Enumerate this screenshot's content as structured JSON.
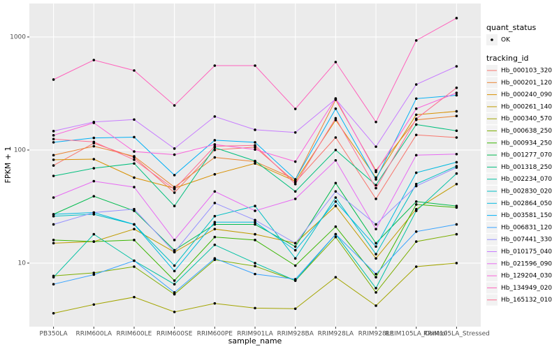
{
  "chart_data": {
    "type": "line",
    "xlabel": "sample_name",
    "ylabel": "FPKM + 1",
    "log_y": true,
    "grid": true,
    "point_color": "#000000",
    "categories": [
      "PB350LA",
      "RRIM600LA",
      "RRIM600LE",
      "RRIM600SE",
      "RRIM600PE",
      "RRIM901LA",
      "RRIM928BA",
      "RRIM928LA",
      "RRIM928LE",
      "RRIM105LA_Control",
      "RRIM105LA_Stressed"
    ],
    "ylim": [
      2.74,
      1977
    ],
    "yticks": [
      10,
      100,
      1000
    ],
    "shape_legend": {
      "title": "quant_status",
      "labels": [
        "OK"
      ]
    },
    "legend": {
      "title": "tracking_id",
      "position": "right"
    },
    "series": [
      {
        "name": "Hb_000103_320",
        "color": "#F8766D",
        "values": [
          73,
          115,
          86,
          42,
          100,
          106,
          52,
          129,
          37,
          136,
          129
        ]
      },
      {
        "name": "Hb_000201_120",
        "color": "#EA8331",
        "values": [
          90,
          108,
          88,
          47,
          86,
          79,
          55,
          278,
          66,
          185,
          200
        ]
      },
      {
        "name": "Hb_000240_090",
        "color": "#D89000",
        "values": [
          82,
          83,
          57,
          46,
          61,
          76,
          53,
          184,
          57,
          205,
          220
        ]
      },
      {
        "name": "Hb_000261_140",
        "color": "#C09B00",
        "values": [
          15,
          15.5,
          20,
          12.5,
          20,
          18,
          15,
          32,
          11,
          30,
          50
        ]
      },
      {
        "name": "Hb_000340_570",
        "color": "#A3A500",
        "values": [
          3.6,
          4.3,
          5,
          3.7,
          4.4,
          4,
          3.95,
          7.5,
          4.2,
          9.3,
          10
        ]
      },
      {
        "name": "Hb_000638_250",
        "color": "#7CAE00",
        "values": [
          7.7,
          8.2,
          9.3,
          5.3,
          10.7,
          9.4,
          7,
          17,
          5.5,
          15.5,
          18
        ]
      },
      {
        "name": "Hb_000934_250",
        "color": "#39B600",
        "values": [
          16,
          15.5,
          16,
          7,
          17,
          16,
          9.5,
          21,
          7.5,
          33,
          31
        ]
      },
      {
        "name": "Hb_001277_070",
        "color": "#00BB4E",
        "values": [
          27,
          39,
          29,
          13,
          22,
          22,
          14,
          51,
          15,
          35,
          32
        ]
      },
      {
        "name": "Hb_001318_250",
        "color": "#00BF7D",
        "values": [
          59,
          69,
          76,
          32,
          105,
          80,
          43,
          100,
          49,
          168,
          148
        ]
      },
      {
        "name": "Hb_002234_070",
        "color": "#00C1A3",
        "values": [
          7.5,
          18,
          10.5,
          6.5,
          14.5,
          10,
          7,
          18,
          6,
          29,
          62
        ]
      },
      {
        "name": "Hb_002830_020",
        "color": "#00BFC4",
        "values": [
          26,
          27,
          22,
          9.5,
          26,
          32,
          11,
          38,
          12,
          50,
          72
        ]
      },
      {
        "name": "Hb_002864_050",
        "color": "#00BAE0",
        "values": [
          27,
          28,
          22,
          8.5,
          23,
          23,
          13,
          35,
          14,
          63,
          78
        ]
      },
      {
        "name": "Hb_003581_150",
        "color": "#00B0F6",
        "values": [
          117,
          128,
          130,
          60,
          122,
          117,
          55,
          232,
          55,
          285,
          305
        ]
      },
      {
        "name": "Hb_006831_120",
        "color": "#35A2FF",
        "values": [
          6.5,
          7.9,
          10.5,
          5.5,
          11,
          8,
          7.2,
          18,
          8,
          19,
          22
        ]
      },
      {
        "name": "Hb_007441_330",
        "color": "#9590FF",
        "values": [
          22,
          28,
          30,
          12.5,
          34,
          24,
          15,
          43,
          22,
          48,
          70
        ]
      },
      {
        "name": "Hb_010175_040",
        "color": "#C77CFF",
        "values": [
          147,
          177,
          186,
          103,
          198,
          151,
          143,
          282,
          107,
          380,
          550
        ]
      },
      {
        "name": "Hb_021596_090",
        "color": "#E76BF3",
        "values": [
          38,
          53,
          47,
          16,
          43,
          29,
          37,
          81,
          20,
          90,
          92
        ]
      },
      {
        "name": "Hb_129204_030",
        "color": "#FA62DB",
        "values": [
          135,
          174,
          97,
          91,
          112,
          101,
          79,
          286,
          64,
          232,
          320
        ]
      },
      {
        "name": "Hb_134949_020",
        "color": "#FF62BC",
        "values": [
          420,
          625,
          505,
          248,
          558,
          558,
          231,
          600,
          177,
          931,
          1468
        ]
      },
      {
        "name": "Hb_165132_010",
        "color": "#FF6C91",
        "values": [
          125,
          118,
          82,
          45,
          108,
          110,
          50,
          191,
          46,
          189,
          355
        ]
      }
    ]
  }
}
